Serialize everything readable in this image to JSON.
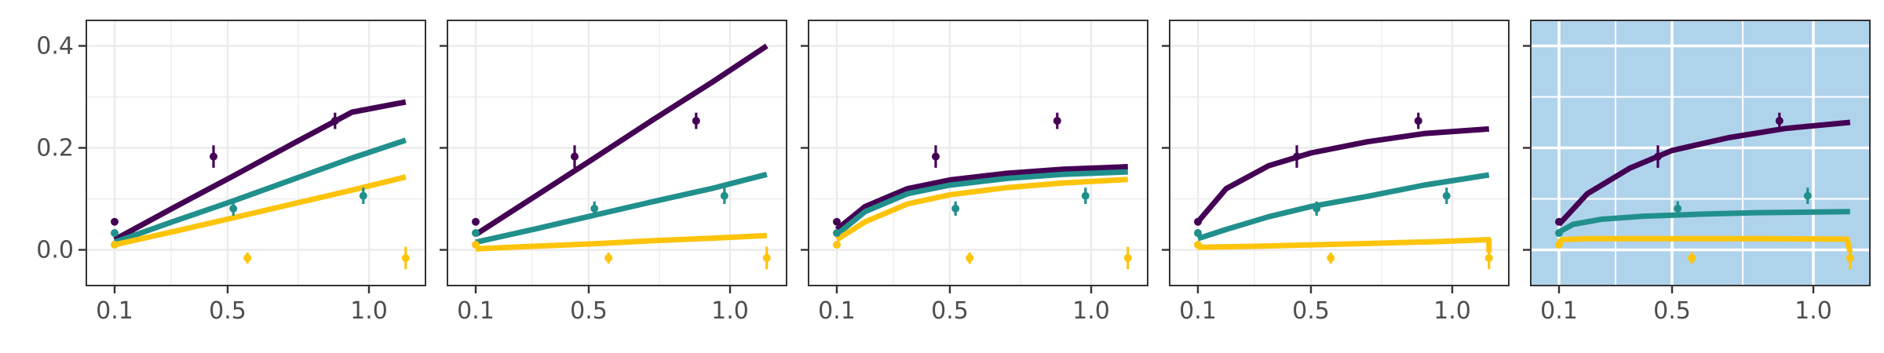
{
  "chart_data": {
    "type": "line",
    "title": "",
    "xlabel": "",
    "ylabel": "",
    "xlim": [
      0.0,
      1.2
    ],
    "ylim": [
      -0.07,
      0.45
    ],
    "x_ticks": [
      0.1,
      0.5,
      1.0
    ],
    "x_tick_labels": [
      "0.1",
      "0.5",
      "1.0"
    ],
    "y_ticks": [
      0.0,
      0.2,
      0.4
    ],
    "y_tick_labels": [
      "0.0",
      "0.2",
      "0.4"
    ],
    "grid": true,
    "legend": "none",
    "colors": {
      "purple": "#440154",
      "teal": "#21908C",
      "yellow": "#FDC40C",
      "panel_border": "#333333",
      "grid_major": "#ebebeb",
      "highlight_background": "#B0D3EC",
      "highlight_grid": "#ffffff"
    },
    "observed": {
      "purple": [
        {
          "x": 0.1,
          "y": 0.055,
          "err": 0.0
        },
        {
          "x": 0.45,
          "y": 0.183,
          "err": 0.022
        },
        {
          "x": 0.88,
          "y": 0.253,
          "err": 0.016
        }
      ],
      "teal": [
        {
          "x": 0.1,
          "y": 0.033,
          "err": 0.0
        },
        {
          "x": 0.52,
          "y": 0.081,
          "err": 0.014
        },
        {
          "x": 0.98,
          "y": 0.106,
          "err": 0.016
        }
      ],
      "yellow": [
        {
          "x": 0.1,
          "y": 0.01,
          "err": 0.0
        },
        {
          "x": 0.57,
          "y": -0.016,
          "err": 0.011
        },
        {
          "x": 1.13,
          "y": -0.016,
          "err": 0.022
        }
      ]
    },
    "panels": [
      {
        "highlighted": false,
        "fits": {
          "purple": [
            [
              0.1,
              0.02
            ],
            [
              0.31,
              0.083
            ],
            [
              0.52,
              0.145
            ],
            [
              0.73,
              0.208
            ],
            [
              0.94,
              0.27
            ],
            [
              1.13,
              0.29
            ]
          ],
          "teal": [
            [
              0.1,
              0.015
            ],
            [
              0.31,
              0.056
            ],
            [
              0.52,
              0.096
            ],
            [
              0.73,
              0.138
            ],
            [
              0.94,
              0.18
            ],
            [
              1.13,
              0.215
            ]
          ],
          "yellow": [
            [
              0.1,
              0.01
            ],
            [
              0.31,
              0.036
            ],
            [
              0.52,
              0.063
            ],
            [
              0.73,
              0.09
            ],
            [
              0.94,
              0.117
            ],
            [
              1.13,
              0.143
            ]
          ]
        }
      },
      {
        "highlighted": false,
        "fits": {
          "purple": [
            [
              0.1,
              0.03
            ],
            [
              0.31,
              0.105
            ],
            [
              0.52,
              0.18
            ],
            [
              0.73,
              0.256
            ],
            [
              0.94,
              0.33
            ],
            [
              1.13,
              0.4
            ]
          ],
          "teal": [
            [
              0.1,
              0.015
            ],
            [
              0.31,
              0.041
            ],
            [
              0.52,
              0.068
            ],
            [
              0.73,
              0.095
            ],
            [
              0.94,
              0.121
            ],
            [
              1.13,
              0.148
            ]
          ],
          "yellow": [
            [
              0.1,
              0.002
            ],
            [
              0.31,
              0.007
            ],
            [
              0.52,
              0.012
            ],
            [
              0.73,
              0.018
            ],
            [
              0.94,
              0.023
            ],
            [
              1.13,
              0.028
            ]
          ]
        }
      },
      {
        "highlighted": false,
        "fits": {
          "purple": [
            [
              0.1,
              0.04
            ],
            [
              0.2,
              0.085
            ],
            [
              0.35,
              0.12
            ],
            [
              0.5,
              0.137
            ],
            [
              0.7,
              0.15
            ],
            [
              0.9,
              0.158
            ],
            [
              1.13,
              0.163
            ]
          ],
          "teal": [
            [
              0.1,
              0.03
            ],
            [
              0.2,
              0.075
            ],
            [
              0.35,
              0.11
            ],
            [
              0.5,
              0.127
            ],
            [
              0.7,
              0.14
            ],
            [
              0.9,
              0.148
            ],
            [
              1.13,
              0.153
            ]
          ],
          "yellow": [
            [
              0.1,
              0.02
            ],
            [
              0.2,
              0.055
            ],
            [
              0.35,
              0.09
            ],
            [
              0.5,
              0.108
            ],
            [
              0.7,
              0.122
            ],
            [
              0.9,
              0.131
            ],
            [
              1.13,
              0.138
            ]
          ]
        }
      },
      {
        "highlighted": false,
        "fits": {
          "purple": [
            [
              0.1,
              0.055
            ],
            [
              0.2,
              0.12
            ],
            [
              0.35,
              0.165
            ],
            [
              0.5,
              0.19
            ],
            [
              0.7,
              0.212
            ],
            [
              0.9,
              0.228
            ],
            [
              1.13,
              0.237
            ]
          ],
          "teal": [
            [
              0.1,
              0.022
            ],
            [
              0.2,
              0.04
            ],
            [
              0.35,
              0.065
            ],
            [
              0.5,
              0.085
            ],
            [
              0.7,
              0.105
            ],
            [
              0.9,
              0.127
            ],
            [
              1.13,
              0.147
            ]
          ],
          "yellow": [
            [
              0.1,
              0.005
            ],
            [
              0.31,
              0.007
            ],
            [
              0.52,
              0.01
            ],
            [
              0.73,
              0.013
            ],
            [
              0.94,
              0.016
            ],
            [
              1.13,
              0.02
            ],
            [
              1.13,
              -0.005
            ]
          ]
        }
      },
      {
        "highlighted": true,
        "fits": {
          "purple": [
            [
              0.1,
              0.05
            ],
            [
              0.2,
              0.11
            ],
            [
              0.35,
              0.16
            ],
            [
              0.5,
              0.195
            ],
            [
              0.7,
              0.22
            ],
            [
              0.9,
              0.238
            ],
            [
              1.13,
              0.25
            ]
          ],
          "teal": [
            [
              0.1,
              0.035
            ],
            [
              0.15,
              0.05
            ],
            [
              0.25,
              0.06
            ],
            [
              0.4,
              0.066
            ],
            [
              0.6,
              0.07
            ],
            [
              0.8,
              0.073
            ],
            [
              1.13,
              0.075
            ]
          ],
          "yellow": [
            [
              0.1,
              0.015
            ],
            [
              0.11,
              0.02
            ],
            [
              0.2,
              0.022
            ],
            [
              0.5,
              0.022
            ],
            [
              0.8,
              0.022
            ],
            [
              1.12,
              0.021
            ],
            [
              1.13,
              -0.005
            ]
          ]
        }
      }
    ]
  }
}
